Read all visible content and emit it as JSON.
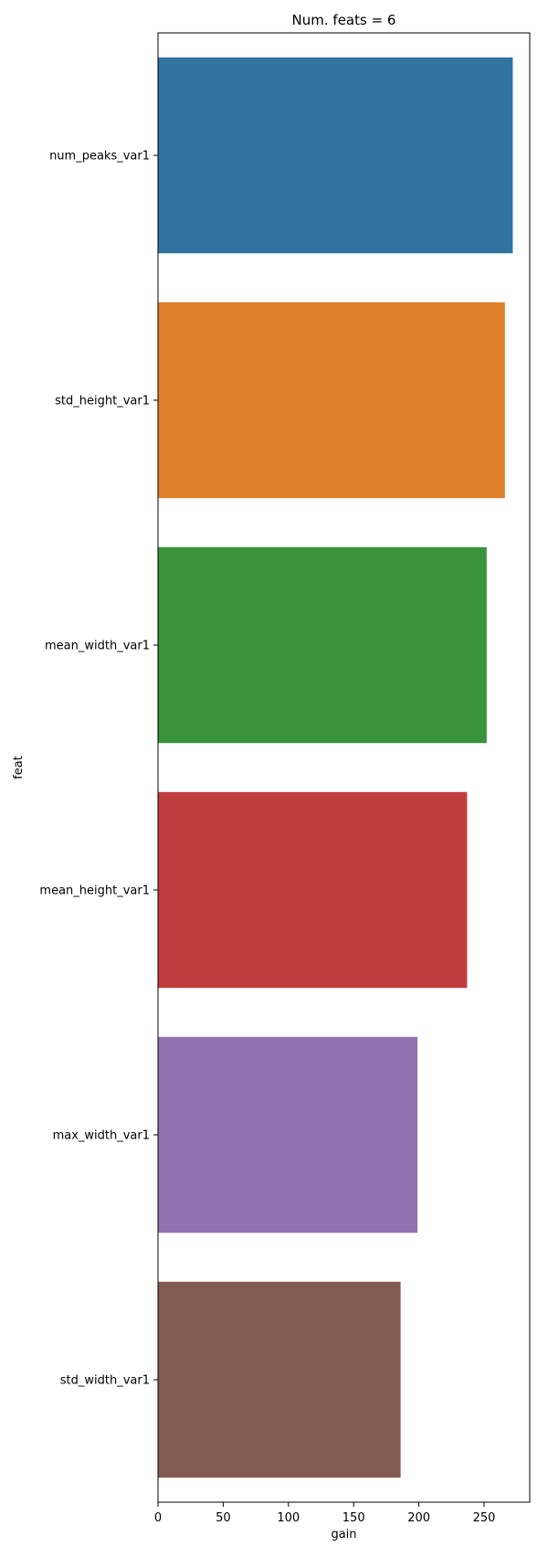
{
  "chart_data": {
    "type": "bar",
    "orientation": "horizontal",
    "title": "Num. feats = 6",
    "xlabel": "gain",
    "ylabel": "feat",
    "xlim": [
      0,
      285
    ],
    "xticks": [
      0,
      50,
      100,
      150,
      200,
      250
    ],
    "grid": false,
    "legend": "none",
    "categories": [
      "num_peaks_var1",
      "std_height_var1",
      "mean_width_var1",
      "mean_height_var1",
      "max_width_var1",
      "std_width_var1"
    ],
    "values": [
      272,
      266,
      252,
      237,
      199,
      186
    ],
    "colors": [
      "#3274a1",
      "#e1812c",
      "#3a923a",
      "#c03d3e",
      "#9372b2",
      "#845b53"
    ]
  }
}
